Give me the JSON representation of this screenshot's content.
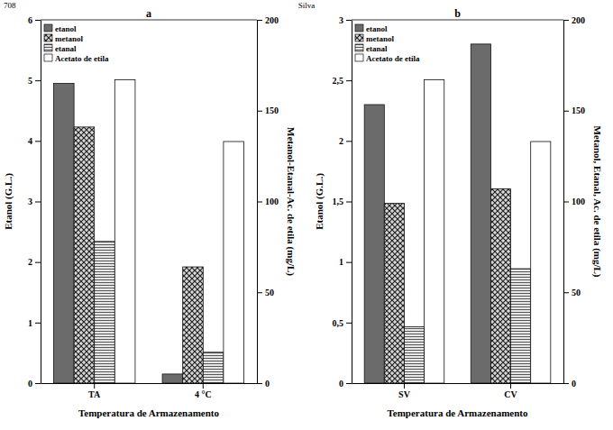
{
  "header": {
    "page": "708",
    "author": "Silva"
  },
  "chart_data": [
    {
      "type": "bar",
      "title": "a",
      "x_label": "Temperatura de Armazenamento",
      "y_label": "Etanol (G.L.)",
      "y2_label": "Metanol-Etanal-Ac. de etila (mg/L)",
      "categories": [
        "TA",
        "4 °C"
      ],
      "series": [
        {
          "name": "etanol",
          "color": "#6b6b6b",
          "values": [
            4.95,
            0.15
          ]
        },
        {
          "name": "metanol",
          "color": "#d8d8d8",
          "axis": "y2",
          "values": [
            141,
            64
          ]
        },
        {
          "name": "etanal",
          "color": "#e6e6e6",
          "axis": "y2",
          "values": [
            78,
            17
          ]
        },
        {
          "name": "Acetato de etila",
          "color": "#ffffff",
          "axis": "y2",
          "values": [
            167,
            133
          ]
        }
      ],
      "ylim": [
        0,
        6
      ],
      "yticks": [
        0,
        1,
        2,
        3,
        4,
        5,
        6
      ],
      "y2lim": [
        0,
        200
      ],
      "y2ticks": [
        0,
        50,
        100,
        150,
        200
      ],
      "legend": "upper left",
      "grid": false
    },
    {
      "type": "bar",
      "title": "b",
      "x_label": "Temperatura de Armazenamento",
      "y_label": "Etanol (G.L.)",
      "y2_label": "Metanol, Etanal, Ac. de etila (mg/L)",
      "categories": [
        "SV",
        "CV"
      ],
      "series": [
        {
          "name": "etanol",
          "color": "#6b6b6b",
          "values": [
            2.3,
            2.8
          ]
        },
        {
          "name": "metanol",
          "color": "#d8d8d8",
          "axis": "y2",
          "values": [
            99,
            107
          ]
        },
        {
          "name": "etanal",
          "color": "#e6e6e6",
          "axis": "y2",
          "values": [
            31,
            63
          ]
        },
        {
          "name": "Acetato de etila",
          "color": "#ffffff",
          "axis": "y2",
          "values": [
            167,
            133
          ]
        }
      ],
      "ylim": [
        0,
        3
      ],
      "yticks": [
        0,
        {
          "value": 0.5,
          "label": "0,5"
        },
        1,
        {
          "value": 1.5,
          "label": "1,5"
        },
        2,
        {
          "value": 2.5,
          "label": "2,5"
        },
        3
      ],
      "y2lim": [
        0,
        200
      ],
      "y2ticks": [
        0,
        50,
        100,
        150,
        200
      ],
      "legend": "upper left",
      "grid": false
    }
  ]
}
